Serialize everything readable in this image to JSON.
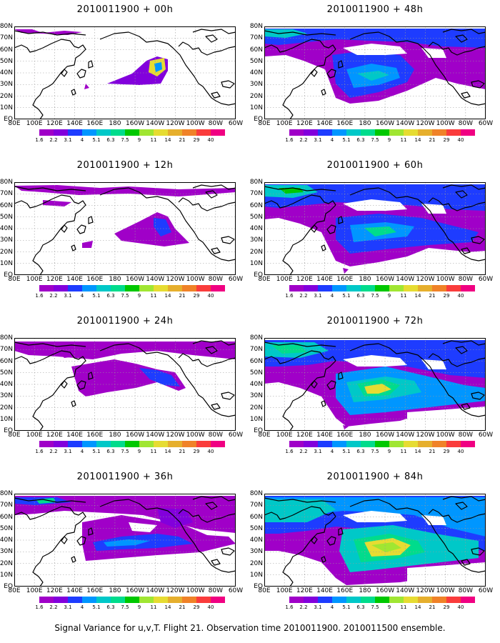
{
  "colorbar": {
    "colors": [
      "#a000c8",
      "#8200dc",
      "#1e3cff",
      "#0096ff",
      "#00c8c8",
      "#00dc8c",
      "#00c800",
      "#a0e632",
      "#e6dc32",
      "#e6af2d",
      "#f08228",
      "#fa3c3c",
      "#f00082"
    ],
    "labels": [
      "1.6",
      "2.2",
      "3.1",
      "4",
      "5.1",
      "6.3",
      "7.5",
      "9",
      "11",
      "14",
      "21",
      "29",
      "40"
    ]
  },
  "lat_labels": [
    "80N",
    "70N",
    "60N",
    "50N",
    "40N",
    "30N",
    "20N",
    "10N",
    "EQ"
  ],
  "lon_labels": [
    "80E",
    "100E",
    "120E",
    "140E",
    "160E",
    "180",
    "160W",
    "140W",
    "120W",
    "100W",
    "80W",
    "60W"
  ],
  "panels": [
    {
      "title": "2010011900 + 00h",
      "level": 0
    },
    {
      "title": "2010011900 + 48h",
      "level": 4
    },
    {
      "title": "2010011900 + 12h",
      "level": 1
    },
    {
      "title": "2010011900 + 60h",
      "level": 5
    },
    {
      "title": "2010011900 + 24h",
      "level": 2
    },
    {
      "title": "2010011900 + 72h",
      "level": 6
    },
    {
      "title": "2010011900 + 36h",
      "level": 3
    },
    {
      "title": "2010011900 + 84h",
      "level": 7
    }
  ],
  "footer": "Signal Variance for u,v,T. Flight 21. Observation time 2010011900. 2010011500 ensemble."
}
